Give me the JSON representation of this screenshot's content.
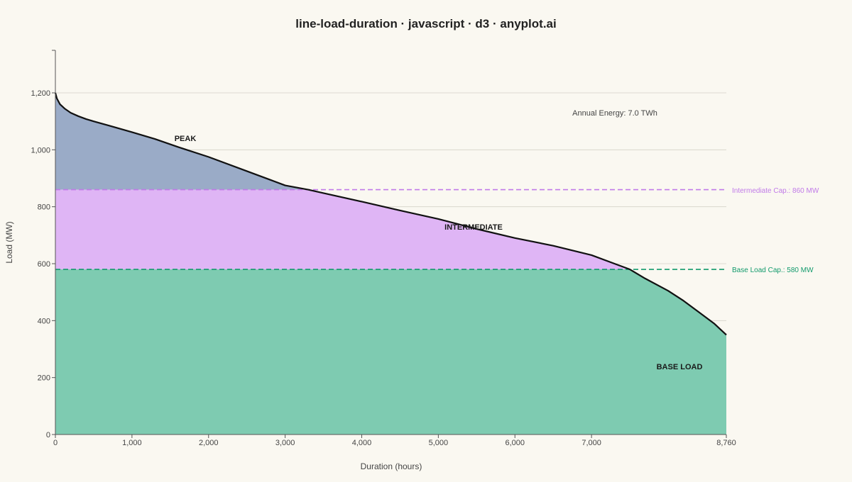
{
  "chart_data": {
    "type": "area",
    "title": "line-load-duration · javascript · d3 · anyplot.ai",
    "xlabel": "Duration (hours)",
    "ylabel": "Load (MW)",
    "xlim": [
      0,
      8760
    ],
    "ylim": [
      0,
      1350
    ],
    "x_ticks": [
      0,
      1000,
      2000,
      3000,
      4000,
      5000,
      6000,
      7000,
      8760
    ],
    "x_tick_labels": [
      "0",
      "1,000",
      "2,000",
      "3,000",
      "4,000",
      "5,000",
      "6,000",
      "7,000",
      "8,760"
    ],
    "y_ticks": [
      0,
      200,
      400,
      600,
      800,
      1000,
      1200
    ],
    "y_tick_labels": [
      "0",
      "200",
      "400",
      "600",
      "800",
      "1,000",
      "1,200"
    ],
    "grid": "horizontal",
    "series": [
      {
        "name": "Load Duration",
        "color": "#111111",
        "x": [
          0,
          20,
          60,
          120,
          200,
          300,
          400,
          500,
          700,
          1000,
          1300,
          1600,
          2000,
          2500,
          3000,
          3300,
          3500,
          4000,
          4500,
          5000,
          5500,
          6000,
          6500,
          7000,
          7300,
          7500,
          7700,
          8000,
          8200,
          8400,
          8600,
          8760
        ],
        "y": [
          1200,
          1180,
          1160,
          1145,
          1130,
          1118,
          1108,
          1100,
          1085,
          1062,
          1038,
          1010,
          975,
          925,
          875,
          860,
          848,
          818,
          787,
          757,
          722,
          690,
          663,
          630,
          600,
          580,
          548,
          505,
          470,
          430,
          390,
          350
        ]
      }
    ],
    "regions": [
      {
        "name": "PEAK",
        "label": "PEAK",
        "from": 860,
        "to": null,
        "color": "#9aabc7"
      },
      {
        "name": "INTERMEDIATE",
        "label": "INTERMEDIATE",
        "from": 580,
        "to": 860,
        "color": "#dfb5f5"
      },
      {
        "name": "BASE LOAD",
        "label": "BASE LOAD",
        "from": 0,
        "to": 580,
        "color": "#7ecbb1"
      }
    ],
    "reference_lines": [
      {
        "value": 860,
        "label": "Intermediate Cap.: 860 MW",
        "color": "#c07ae8"
      },
      {
        "value": 580,
        "label": "Base Load Cap.: 580 MW",
        "color": "#129a6c"
      }
    ],
    "annotation": "Annual Energy: 7.0 TWh"
  }
}
